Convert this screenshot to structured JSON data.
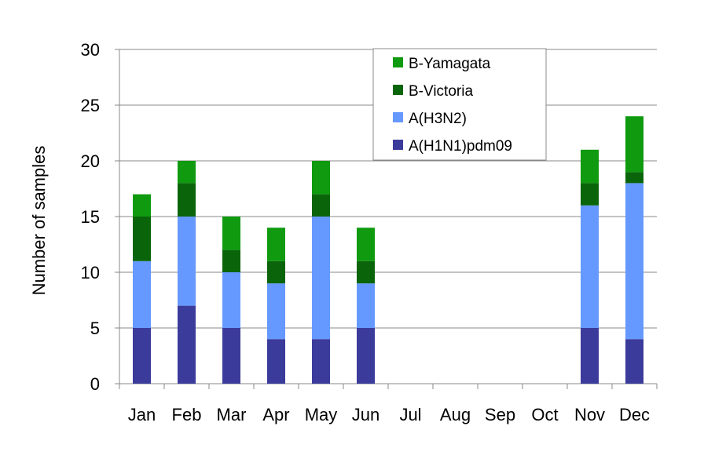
{
  "chart_data": {
    "type": "bar",
    "stacked": true,
    "title": "",
    "xlabel": "",
    "ylabel": "Number of samples",
    "ylim": [
      0,
      30
    ],
    "yticks": [
      0,
      5,
      10,
      15,
      20,
      25,
      30
    ],
    "grid": "horizontal",
    "legend_position": "top-center",
    "categories": [
      "Jan",
      "Feb",
      "Mar",
      "Apr",
      "May",
      "Jun",
      "Jul",
      "Aug",
      "Sep",
      "Oct",
      "Nov",
      "Dec"
    ],
    "series": [
      {
        "name": "A(H1N1)pdm09",
        "color": "#3B3B9B",
        "values": [
          5,
          7,
          5,
          4,
          4,
          5,
          0,
          0,
          0,
          0,
          5,
          4
        ]
      },
      {
        "name": "A(H3N2)",
        "color": "#6699FF",
        "values": [
          6,
          8,
          5,
          5,
          11,
          4,
          0,
          0,
          0,
          0,
          11,
          14
        ]
      },
      {
        "name": "B-Victoria",
        "color": "#0A650A",
        "values": [
          4,
          3,
          2,
          2,
          2,
          2,
          0,
          0,
          0,
          0,
          2,
          1
        ]
      },
      {
        "name": "B-Yamagata",
        "color": "#0F9A0F",
        "values": [
          2,
          2,
          3,
          3,
          3,
          3,
          0,
          0,
          0,
          0,
          3,
          5
        ]
      }
    ],
    "legend_order": [
      "B-Yamagata",
      "B-Victoria",
      "A(H3N2)",
      "A(H1N1)pdm09"
    ]
  }
}
